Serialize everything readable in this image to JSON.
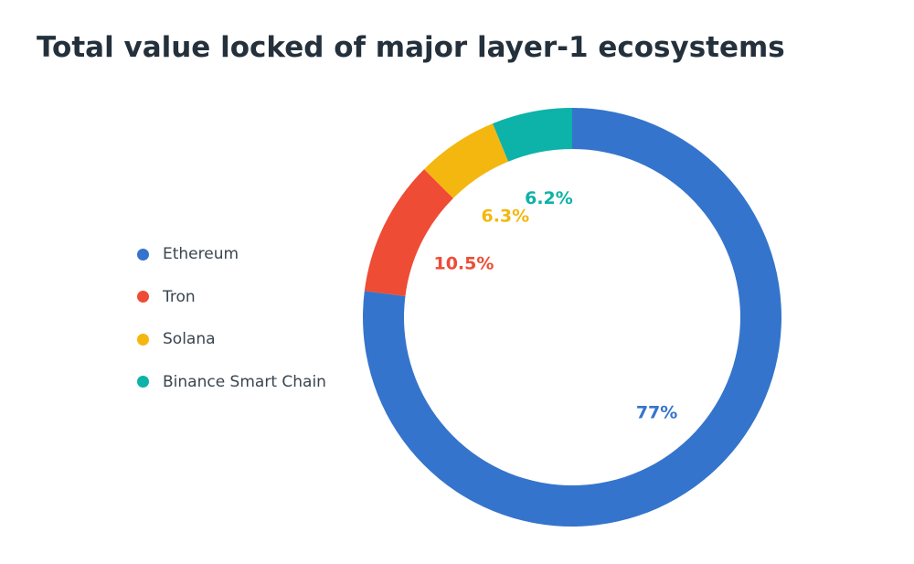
{
  "chart_data": {
    "type": "pie",
    "title": "Total value locked of major layer-1 ecosystems",
    "categories": [
      "Ethereum",
      "Tron",
      "Solana",
      "Binance Smart Chain"
    ],
    "values": [
      77,
      10.5,
      6.3,
      6.2
    ],
    "value_labels": [
      "77%",
      "10.5%",
      "6.3%",
      "6.2%"
    ],
    "colors": [
      "#3574cc",
      "#ee4c35",
      "#f4b70f",
      "#0db2a8"
    ],
    "style": "donut",
    "legend_position": "left"
  }
}
